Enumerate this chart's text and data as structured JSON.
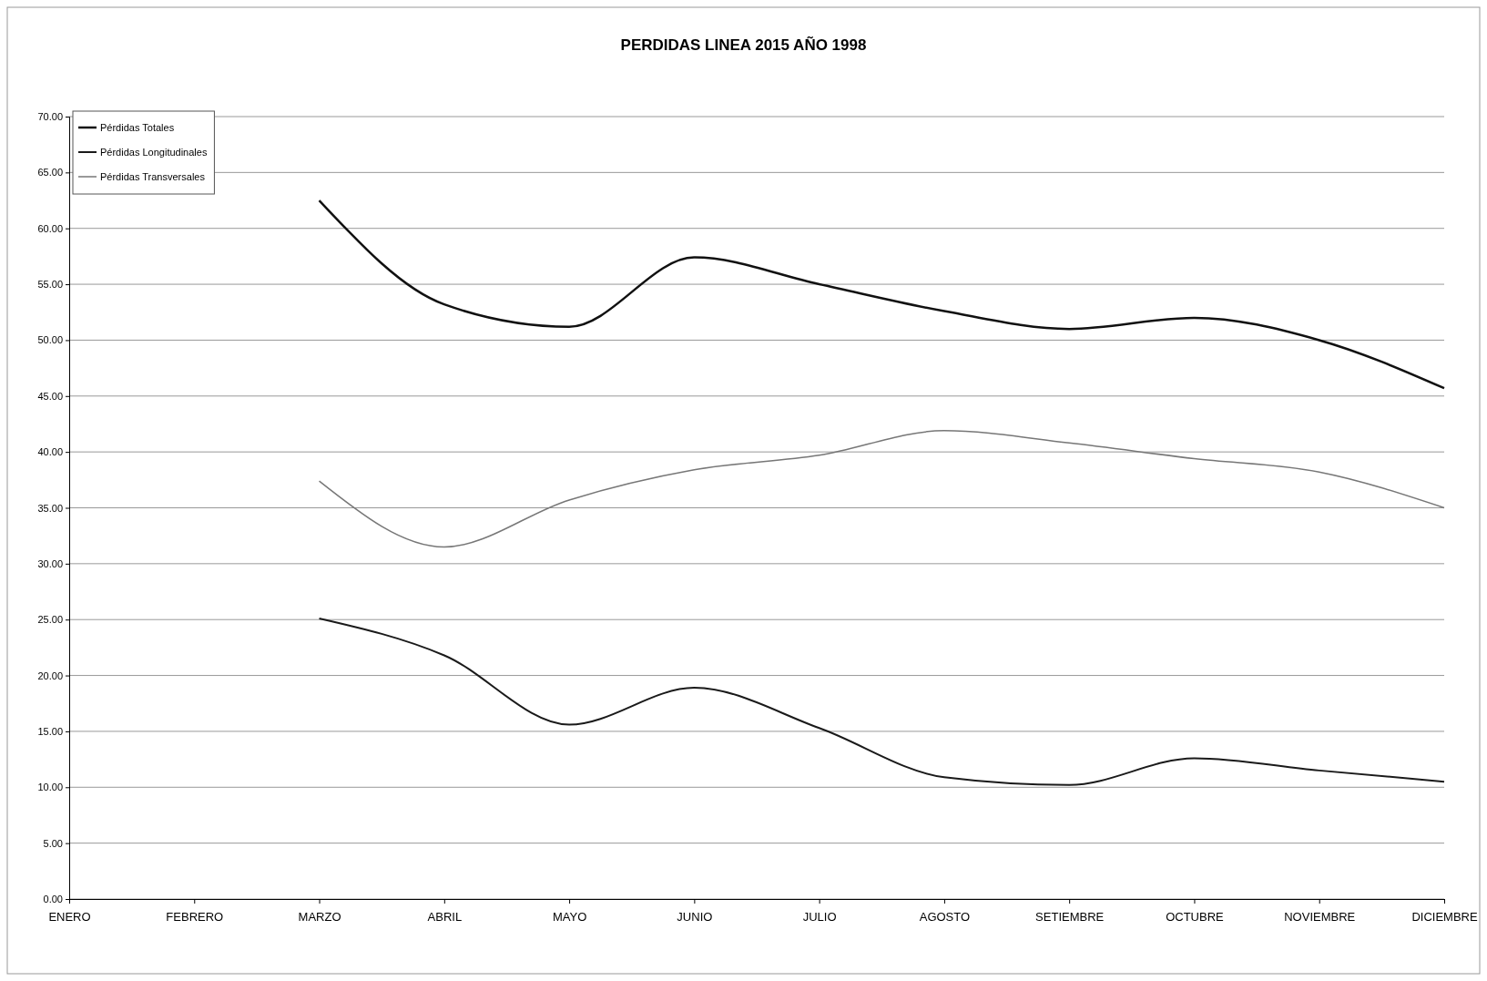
{
  "chart_data": {
    "type": "line",
    "title": "PERDIDAS LINEA 2015 AÑO 1998",
    "categories": [
      "ENERO",
      "FEBRERO",
      "MARZO",
      "ABRIL",
      "MAYO",
      "JUNIO",
      "JULIO",
      "AGOSTO",
      "SETIEMBRE",
      "OCTUBRE",
      "NOVIEMBRE",
      "DICIEMBRE"
    ],
    "series": [
      {
        "name": "Pérdidas Totales",
        "color": "#111111",
        "values": [
          null,
          null,
          62.5,
          53.2,
          51.2,
          57.4,
          55.0,
          52.6,
          51.0,
          52.0,
          50.0,
          45.7
        ]
      },
      {
        "name": "Pérdidas Longitudinales",
        "color": "#1a1a1a",
        "values": [
          null,
          null,
          25.1,
          21.8,
          15.6,
          18.9,
          15.3,
          10.9,
          10.2,
          12.6,
          11.5,
          10.5
        ]
      },
      {
        "name": "Pérdidas Transversales",
        "color": "#777777",
        "values": [
          null,
          null,
          37.4,
          31.5,
          35.7,
          38.4,
          39.7,
          41.9,
          40.8,
          39.4,
          38.2,
          35.0
        ]
      }
    ],
    "ylim": [
      0,
      70
    ],
    "yticks": [
      {
        "value": 0,
        "label": "0.00"
      },
      {
        "value": 5,
        "label": "5.00"
      },
      {
        "value": 10,
        "label": "10.00"
      },
      {
        "value": 15,
        "label": "15.00"
      },
      {
        "value": 20,
        "label": "20.00"
      },
      {
        "value": 25,
        "label": "25.00"
      },
      {
        "value": 30,
        "label": "30.00"
      },
      {
        "value": 35,
        "label": "35.00"
      },
      {
        "value": 40,
        "label": "40.00"
      },
      {
        "value": 45,
        "label": "45.00"
      },
      {
        "value": 50,
        "label": "50.00"
      },
      {
        "value": 55,
        "label": "55.00"
      },
      {
        "value": 60,
        "label": "60.00"
      },
      {
        "value": 65,
        "label": "65.00"
      },
      {
        "value": 70,
        "label": "70.00"
      }
    ],
    "grid": "y",
    "legend": "top left",
    "marker": "none",
    "line_style": "solid"
  }
}
